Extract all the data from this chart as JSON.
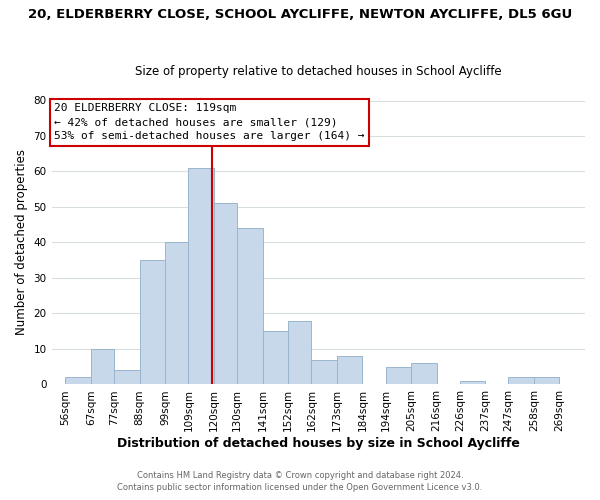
{
  "title_line1": "20, ELDERBERRY CLOSE, SCHOOL AYCLIFFE, NEWTON AYCLIFFE, DL5 6GU",
  "title_line2": "Size of property relative to detached houses in School Aycliffe",
  "xlabel": "Distribution of detached houses by size in School Aycliffe",
  "ylabel": "Number of detached properties",
  "bar_left_edges": [
    56,
    67,
    77,
    88,
    99,
    109,
    120,
    130,
    141,
    152,
    162,
    173,
    184,
    194,
    205,
    216,
    226,
    237,
    247,
    258
  ],
  "bar_heights": [
    2,
    10,
    4,
    35,
    40,
    61,
    51,
    44,
    15,
    18,
    7,
    8,
    0,
    5,
    6,
    0,
    1,
    0,
    2,
    2
  ],
  "bar_widths": [
    11,
    10,
    11,
    11,
    10,
    11,
    10,
    11,
    11,
    10,
    11,
    11,
    10,
    11,
    11,
    10,
    11,
    10,
    11,
    11
  ],
  "tick_labels": [
    "56sqm",
    "67sqm",
    "77sqm",
    "88sqm",
    "99sqm",
    "109sqm",
    "120sqm",
    "130sqm",
    "141sqm",
    "152sqm",
    "162sqm",
    "173sqm",
    "184sqm",
    "194sqm",
    "205sqm",
    "216sqm",
    "226sqm",
    "237sqm",
    "247sqm",
    "258sqm",
    "269sqm"
  ],
  "tick_positions": [
    56,
    67,
    77,
    88,
    99,
    109,
    120,
    130,
    141,
    152,
    162,
    173,
    184,
    194,
    205,
    216,
    226,
    237,
    247,
    258,
    269
  ],
  "bar_color": "#c8d8eb",
  "bar_edge_color": "#9ab5cc",
  "vline_x": 119,
  "vline_color": "#cc0000",
  "ylim": [
    0,
    80
  ],
  "yticks": [
    0,
    10,
    20,
    30,
    40,
    50,
    60,
    70,
    80
  ],
  "xlim": [
    50,
    280
  ],
  "box_text_line1": "20 ELDERBERRY CLOSE: 119sqm",
  "box_text_line2": "← 42% of detached houses are smaller (129)",
  "box_text_line3": "53% of semi-detached houses are larger (164) →",
  "footer_line1": "Contains HM Land Registry data © Crown copyright and database right 2024.",
  "footer_line2": "Contains public sector information licensed under the Open Government Licence v3.0.",
  "bg_color": "#ffffff",
  "plot_bg_color": "#ffffff",
  "grid_color": "#d8dde2"
}
